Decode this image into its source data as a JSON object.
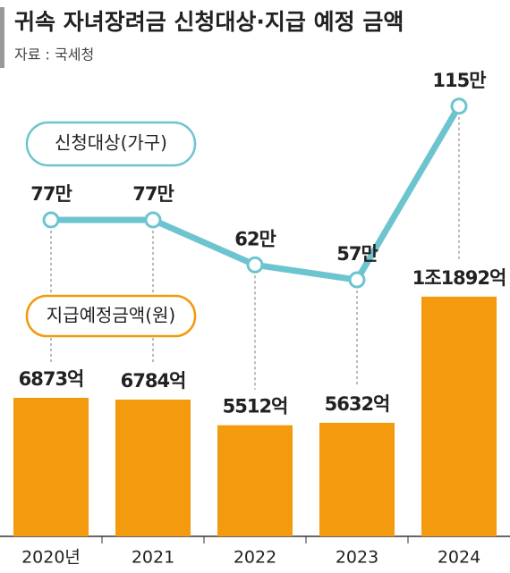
{
  "chart_data": {
    "type": "combo",
    "title": "귀속 자녀장려금 신청대상·지급 예정 금액",
    "source": "자료 : 국세청",
    "categories": [
      "2020년",
      "2021",
      "2022",
      "2023",
      "2024"
    ],
    "series": [
      {
        "name": "신청대상(가구)",
        "type": "line",
        "color": "#6cc4cf",
        "values": [
          77,
          77,
          62,
          57,
          115
        ],
        "value_labels": [
          "77만",
          "77만",
          "62만",
          "57만",
          "115만"
        ]
      },
      {
        "name": "지급예정금액(원)",
        "type": "bar",
        "color": "#f39a0e",
        "values": [
          6873,
          6784,
          5512,
          5632,
          11892
        ],
        "value_labels": [
          "6873억",
          "6784억",
          "5512억",
          "5632억",
          "1조1892억"
        ]
      }
    ]
  }
}
